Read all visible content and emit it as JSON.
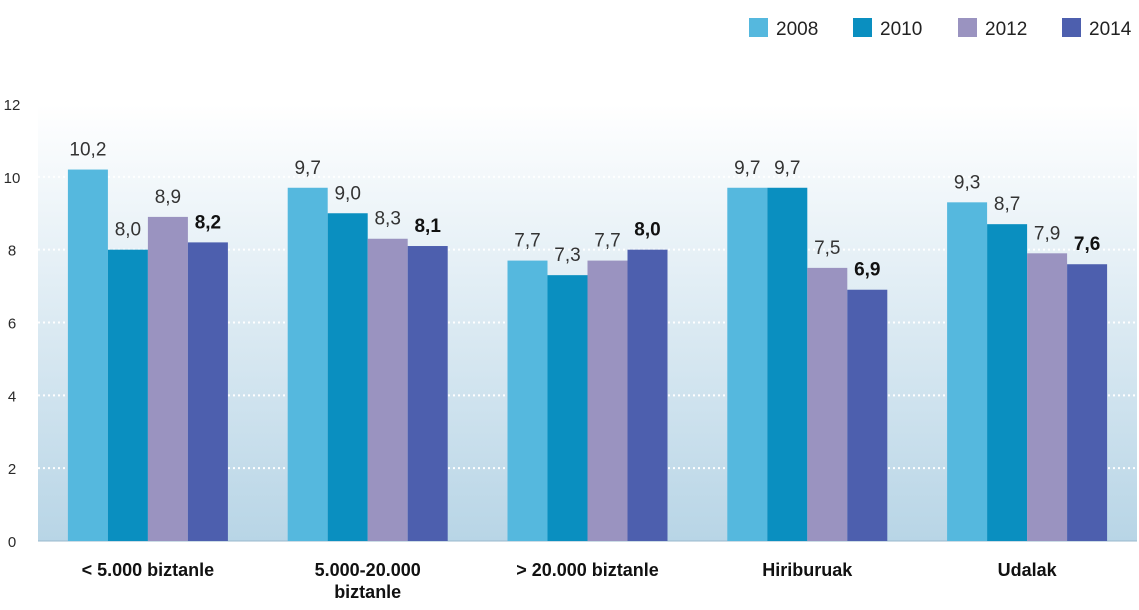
{
  "chart_data": {
    "type": "bar",
    "title": "",
    "xlabel": "",
    "ylabel": "",
    "ylim": [
      0,
      12
    ],
    "yticks": [
      "0",
      "2",
      "4",
      "6",
      "8",
      "10",
      "12"
    ],
    "grid": true,
    "legend_position": "top-right",
    "categories": [
      [
        "< 5.000 biztanle"
      ],
      [
        "5.000-20.000",
        "biztanle"
      ],
      [
        "> 20.000 biztanle"
      ],
      [
        "Hiriburuak"
      ],
      [
        "Udalak"
      ]
    ],
    "series": [
      {
        "name": "2008",
        "color": "#55b8de",
        "values": [
          10.2,
          9.7,
          7.7,
          9.7,
          9.3
        ],
        "labels": [
          "10,2",
          "9,7",
          "7,7",
          "9,7",
          "9,3"
        ],
        "bold_labels": false
      },
      {
        "name": "2010",
        "color": "#0a8fc0",
        "values": [
          8.0,
          9.0,
          7.3,
          9.7,
          8.7
        ],
        "labels": [
          "8,0",
          "9,0",
          "7,3",
          "9,7",
          "8,7"
        ],
        "bold_labels": false
      },
      {
        "name": "2012",
        "color": "#9a93c0",
        "values": [
          8.9,
          8.3,
          7.7,
          7.5,
          7.9
        ],
        "labels": [
          "8,9",
          "8,3",
          "7,7",
          "7,5",
          "7,9"
        ],
        "bold_labels": false
      },
      {
        "name": "2014",
        "color": "#4d5fae",
        "values": [
          8.2,
          8.1,
          8.0,
          6.9,
          7.6
        ],
        "labels": [
          "8,2",
          "8,1",
          "8,0",
          "6,9",
          "7,6"
        ],
        "bold_labels": true
      }
    ]
  }
}
